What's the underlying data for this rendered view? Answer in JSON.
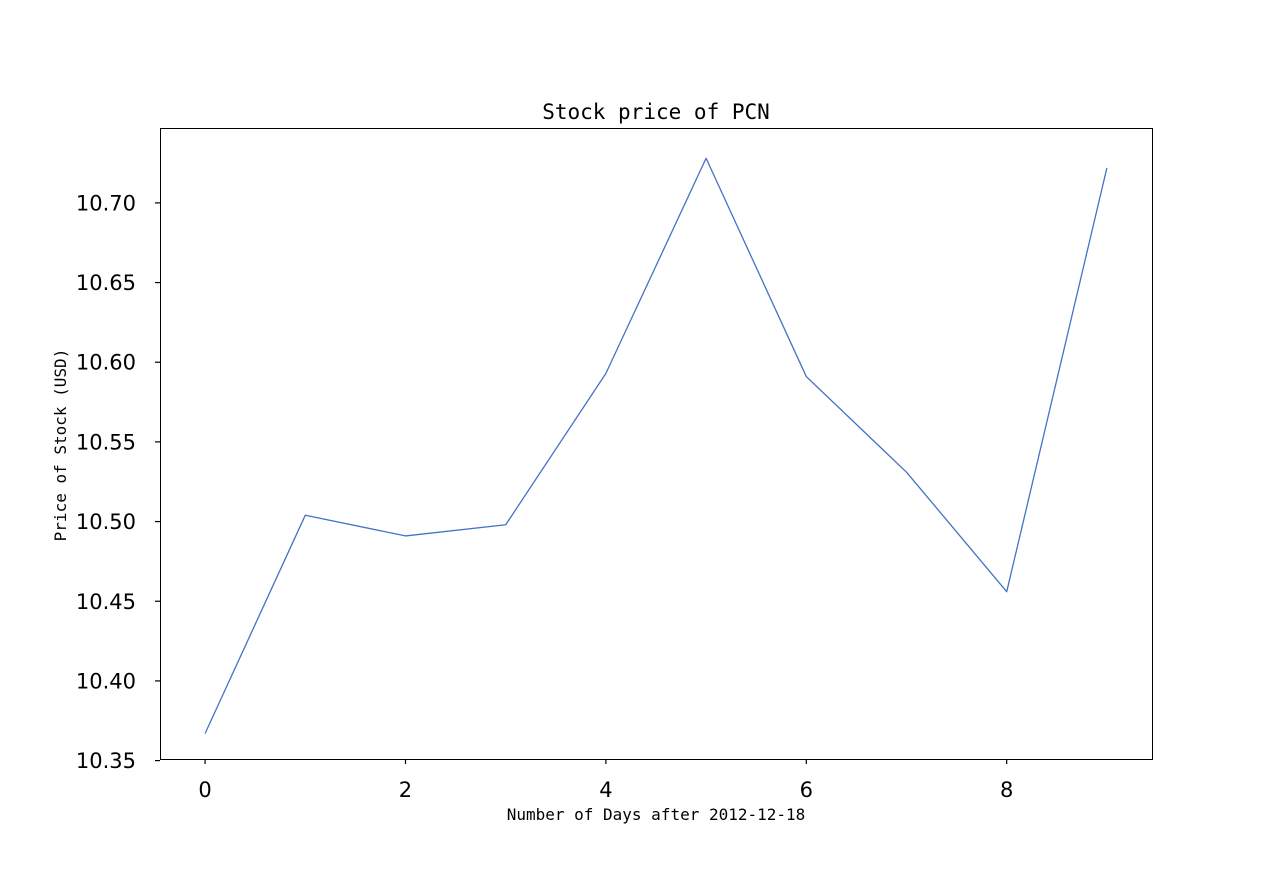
{
  "chart_data": {
    "type": "line",
    "title": "Stock price of PCN",
    "xlabel": "Number of Days after 2012-12-18",
    "ylabel": "Price of Stock (USD)",
    "x": [
      0,
      1,
      2,
      3,
      4,
      5,
      6,
      7,
      8,
      9
    ],
    "series": [
      {
        "values": [
          10.367,
          10.504,
          10.491,
          10.498,
          10.593,
          10.728,
          10.591,
          10.531,
          10.456,
          10.722
        ],
        "color": "#4472c4"
      }
    ],
    "xlim": [
      -0.45,
      9.45
    ],
    "ylim": [
      10.351,
      10.747
    ],
    "xticks": [
      0,
      2,
      4,
      6,
      8
    ],
    "xtick_labels": [
      "0",
      "2",
      "4",
      "6",
      "8"
    ],
    "yticks": [
      10.35,
      10.4,
      10.45,
      10.5,
      10.55,
      10.6,
      10.65,
      10.7
    ],
    "ytick_labels": [
      "10.35",
      "10.40",
      "10.45",
      "10.50",
      "10.55",
      "10.60",
      "10.65",
      "10.70"
    ],
    "grid": false,
    "legend": false
  }
}
